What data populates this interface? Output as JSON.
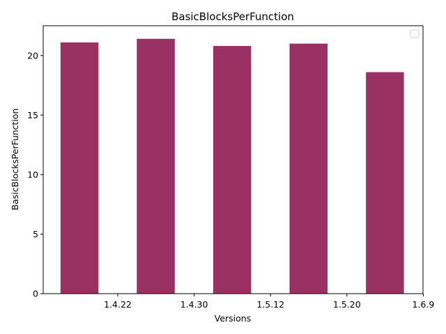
{
  "chart_data": {
    "type": "bar",
    "title": "BasicBlocksPerFunction",
    "xlabel": "Versions",
    "ylabel": "BasicBlocksPerFunction",
    "categories": [
      "1.4.22",
      "1.4.30",
      "1.5.12",
      "1.5.20",
      "1.6.9"
    ],
    "series": [
      {
        "values": [
          21.1,
          21.4,
          20.8,
          21.0,
          18.6
        ]
      }
    ],
    "yticks": [
      0,
      5,
      10,
      15,
      20
    ],
    "ylim": [
      0,
      22.5
    ],
    "grid": false,
    "legend": "top-right",
    "bar_color": "#993163"
  }
}
